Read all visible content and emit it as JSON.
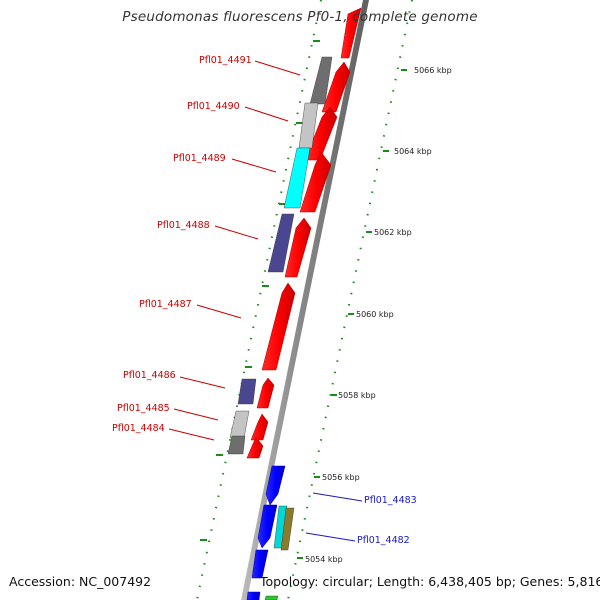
{
  "title": "Pseudomonas fluorescens Pf0-1, complete genome",
  "footer": {
    "accession": "Accession: NC_007492",
    "topology": "Topology: circular; Length: 6,438,405 bp; Genes: 5,816"
  },
  "scale_labels": [
    "5066 kbp",
    "5064 kbp",
    "5062 kbp",
    "5060 kbp",
    "5058 kbp",
    "5056 kbp",
    "5054 kbp"
  ],
  "gene_labels": [
    {
      "name": "Pfl01_4491",
      "color": "#cc0000"
    },
    {
      "name": "Pfl01_4490",
      "color": "#cc0000"
    },
    {
      "name": "Pfl01_4489",
      "color": "#cc0000"
    },
    {
      "name": "Pfl01_4488",
      "color": "#cc0000"
    },
    {
      "name": "Pfl01_4487",
      "color": "#cc0000"
    },
    {
      "name": "Pfl01_4486",
      "color": "#cc0000"
    },
    {
      "name": "Pfl01_4485",
      "color": "#cc0000"
    },
    {
      "name": "Pfl01_4484",
      "color": "#cc0000"
    },
    {
      "name": "Pfl01_4483",
      "color": "#1a1acc"
    },
    {
      "name": "Pfl01_4482",
      "color": "#1a1acc"
    }
  ],
  "colors": {
    "forward_gene": "#ff0000",
    "reverse_gene": "#0000ff",
    "backbone": "#8a8a8a",
    "scale_ticks": "#1a8c1a",
    "cog_dark_gray": "#6e6e6e",
    "cog_light_gray": "#c4c4c4",
    "cog_cyan": "#00ffff",
    "cog_slate_blue": "#4a4690",
    "cog_olive": "#8a7a2a",
    "cog_green": "#2dc42d"
  }
}
